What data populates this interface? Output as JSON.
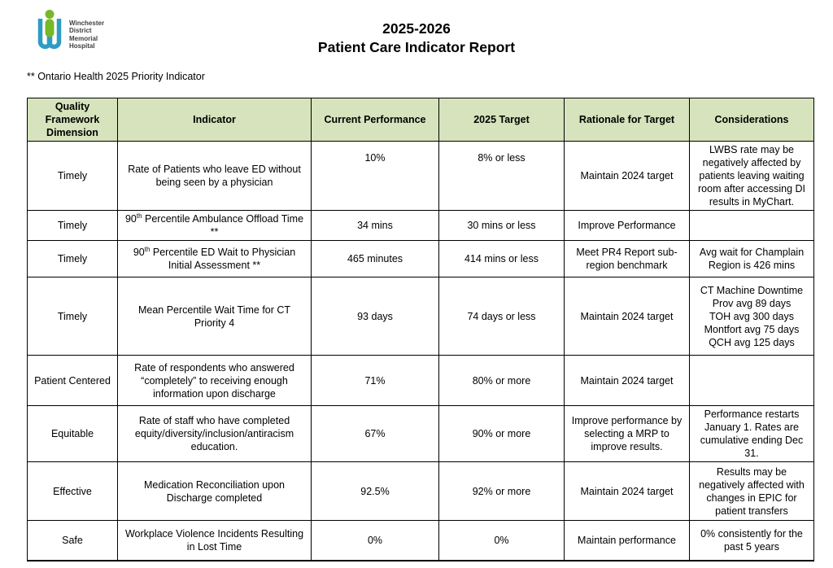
{
  "page": {
    "title_line1": "2025-2026",
    "title_line2": "Patient Care Indicator Report",
    "footnote": "** Ontario Health 2025 Priority Indicator"
  },
  "logo": {
    "org_name_lines": [
      "Winchester",
      "District",
      "Memorial",
      "Hospital"
    ],
    "blue": "#2f9cc4",
    "green": "#76b828"
  },
  "table": {
    "header_bg": "#d6e3bc",
    "columns": [
      "Quality Framework Dimension",
      "Indicator",
      "Current Performance",
      "2025 Target",
      "Rationale for Target",
      "Considerations"
    ],
    "rows": [
      {
        "dimension": "Timely",
        "indicator": [
          {
            "t": "Rate of Patients who leave ED without being seen by a physician"
          }
        ],
        "current": "10%",
        "target": "8% or less",
        "rationale": "Maintain 2024 target",
        "considerations": [
          "LWBS rate may be negatively affected by patients leaving waiting room after accessing DI results in MyChart."
        ]
      },
      {
        "dimension": "Timely",
        "indicator": [
          {
            "t": "90"
          },
          {
            "t": "th",
            "sup": true
          },
          {
            "t": " Percentile Ambulance Offload Time **"
          }
        ],
        "current": "34 mins",
        "target": "30 mins or less",
        "rationale": "Improve Performance",
        "considerations": []
      },
      {
        "dimension": "Timely",
        "indicator": [
          {
            "t": "90"
          },
          {
            "t": "th",
            "sup": true
          },
          {
            "t": " Percentile ED Wait to Physician Initial Assessment **"
          }
        ],
        "current": "465 minutes",
        "target": "414 mins or less",
        "rationale": "Meet PR4 Report sub-region benchmark",
        "considerations": [
          "Avg wait for Champlain Region is 426 mins"
        ]
      },
      {
        "dimension": "Timely",
        "indicator": [
          {
            "t": "Mean Percentile Wait Time for CT Priority 4"
          }
        ],
        "current": "93 days",
        "target": "74 days or less",
        "rationale": "Maintain 2024 target",
        "considerations": [
          "CT Machine Downtime",
          "Prov avg 89 days",
          "TOH avg 300 days",
          "Montfort avg 75 days",
          "QCH avg 125 days"
        ]
      },
      {
        "dimension": "Patient Centered",
        "indicator": [
          {
            "t": "Rate of respondents who answered “completely” to receiving enough information upon discharge"
          }
        ],
        "current": "71%",
        "target": "80% or more",
        "rationale": "Maintain 2024 target",
        "considerations": []
      },
      {
        "dimension": "Equitable",
        "indicator": [
          {
            "t": "Rate of staff who have completed equity/diversity/inclusion/antiracism education."
          }
        ],
        "current": "67%",
        "target": "90% or more",
        "rationale": "Improve performance by selecting a MRP to improve results.",
        "considerations": [
          "Performance restarts January 1.  Rates are cumulative ending Dec 31."
        ]
      },
      {
        "dimension": "Effective",
        "indicator": [
          {
            "t": "Medication Reconciliation upon Discharge completed"
          }
        ],
        "current": "92.5%",
        "target": "92% or more",
        "rationale": "Maintain 2024 target",
        "considerations": [
          "Results may be negatively affected with changes in EPIC for patient transfers"
        ]
      },
      {
        "dimension": "Safe",
        "indicator": [
          {
            "t": "Workplace Violence Incidents Resulting in Lost Time"
          }
        ],
        "current": "0%",
        "target": "0%",
        "rationale": "Maintain performance",
        "considerations": [
          "0% consistently for the past 5 years"
        ]
      }
    ]
  }
}
